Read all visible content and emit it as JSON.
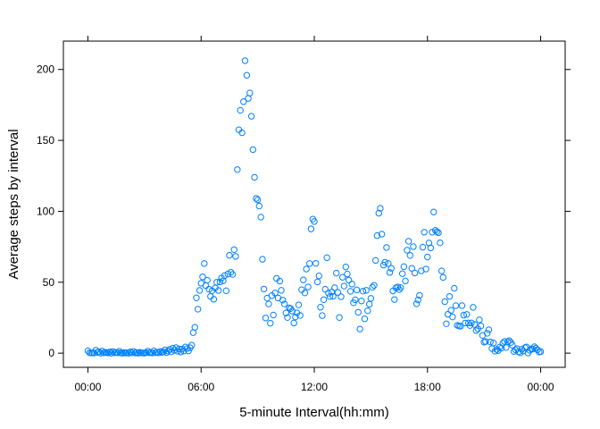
{
  "chart_data": {
    "type": "scatter",
    "title": "",
    "xlabel": "5-minute Interval(hh:mm)",
    "ylabel": "Average steps by interval",
    "x_unit": "hours",
    "xlim": [
      -1.3,
      25.3
    ],
    "ylim": [
      -10,
      220
    ],
    "x_ticks": [
      {
        "value": 0,
        "label": "00:00"
      },
      {
        "value": 6,
        "label": "06:00"
      },
      {
        "value": 12,
        "label": "12:00"
      },
      {
        "value": 18,
        "label": "18:00"
      },
      {
        "value": 24,
        "label": "00:00"
      }
    ],
    "y_ticks": [
      0,
      50,
      100,
      150,
      200
    ],
    "grid": false,
    "ticks_mirrored": true,
    "point_color": "#0080ff",
    "points": [
      [
        0.0,
        1.7
      ],
      [
        0.08,
        0.3
      ],
      [
        0.17,
        0.1
      ],
      [
        0.25,
        0.2
      ],
      [
        0.33,
        0.1
      ],
      [
        0.42,
        2.1
      ],
      [
        0.5,
        0.5
      ],
      [
        0.58,
        0.9
      ],
      [
        0.67,
        0.0
      ],
      [
        0.75,
        1.5
      ],
      [
        0.83,
        0.2
      ],
      [
        0.92,
        0.6
      ],
      [
        1.0,
        0.4
      ],
      [
        1.08,
        0.1
      ],
      [
        1.17,
        0.9
      ],
      [
        1.25,
        0.0
      ],
      [
        1.33,
        1.1
      ],
      [
        1.42,
        0.3
      ],
      [
        1.5,
        0.5
      ],
      [
        1.58,
        0.2
      ],
      [
        1.67,
        1.3
      ],
      [
        1.75,
        0.1
      ],
      [
        1.83,
        0.0
      ],
      [
        1.92,
        0.4
      ],
      [
        2.0,
        0.1
      ],
      [
        2.08,
        0.3
      ],
      [
        2.17,
        0.0
      ],
      [
        2.25,
        0.9
      ],
      [
        2.33,
        0.2
      ],
      [
        2.42,
        1.2
      ],
      [
        2.5,
        0.1
      ],
      [
        2.58,
        0.4
      ],
      [
        2.67,
        0.0
      ],
      [
        2.75,
        0.6
      ],
      [
        2.83,
        0.2
      ],
      [
        2.92,
        0.1
      ],
      [
        3.0,
        0.0
      ],
      [
        3.08,
        0.4
      ],
      [
        3.17,
        1.4
      ],
      [
        3.25,
        0.2
      ],
      [
        3.33,
        0.5
      ],
      [
        3.42,
        0.1
      ],
      [
        3.5,
        1.6
      ],
      [
        3.58,
        0.3
      ],
      [
        3.67,
        0.6
      ],
      [
        3.75,
        0.2
      ],
      [
        3.83,
        1.2
      ],
      [
        3.92,
        0.5
      ],
      [
        4.0,
        0.9
      ],
      [
        4.08,
        2.3
      ],
      [
        4.17,
        0.4
      ],
      [
        4.25,
        1.5
      ],
      [
        4.33,
        2.6
      ],
      [
        4.42,
        0.9
      ],
      [
        4.5,
        3.5
      ],
      [
        4.58,
        2.0
      ],
      [
        4.67,
        3.9
      ],
      [
        4.75,
        1.4
      ],
      [
        4.83,
        3.0
      ],
      [
        4.92,
        0.8
      ],
      [
        5.0,
        2.9
      ],
      [
        5.08,
        1.5
      ],
      [
        5.17,
        4.4
      ],
      [
        5.25,
        3.2
      ],
      [
        5.33,
        1.6
      ],
      [
        5.42,
        3.8
      ],
      [
        5.5,
        5.6
      ],
      [
        5.58,
        14.5
      ],
      [
        5.67,
        18.2
      ],
      [
        5.75,
        39.0
      ],
      [
        5.83,
        31.0
      ],
      [
        5.92,
        44.2
      ],
      [
        6.0,
        49.3
      ],
      [
        6.08,
        53.8
      ],
      [
        6.17,
        63.2
      ],
      [
        6.25,
        47.6
      ],
      [
        6.33,
        51.4
      ],
      [
        6.42,
        45.1
      ],
      [
        6.5,
        40.0
      ],
      [
        6.58,
        44.0
      ],
      [
        6.67,
        38.0
      ],
      [
        6.75,
        46.0
      ],
      [
        6.83,
        50.0
      ],
      [
        6.92,
        44.2
      ],
      [
        7.0,
        50.2
      ],
      [
        7.08,
        53.0
      ],
      [
        7.17,
        51.0
      ],
      [
        7.25,
        54.7
      ],
      [
        7.33,
        44.0
      ],
      [
        7.42,
        55.8
      ],
      [
        7.5,
        69.0
      ],
      [
        7.58,
        57.0
      ],
      [
        7.67,
        55.5
      ],
      [
        7.75,
        73.0
      ],
      [
        7.83,
        68.2
      ],
      [
        7.92,
        129.4
      ],
      [
        8.0,
        157.5
      ],
      [
        8.08,
        171.2
      ],
      [
        8.17,
        155.4
      ],
      [
        8.25,
        177.3
      ],
      [
        8.33,
        206.2
      ],
      [
        8.42,
        195.9
      ],
      [
        8.5,
        179.6
      ],
      [
        8.58,
        183.4
      ],
      [
        8.67,
        167.0
      ],
      [
        8.75,
        143.5
      ],
      [
        8.83,
        124.0
      ],
      [
        8.92,
        109.1
      ],
      [
        9.0,
        108.1
      ],
      [
        9.08,
        103.7
      ],
      [
        9.17,
        95.9
      ],
      [
        9.25,
        66.2
      ],
      [
        9.33,
        45.2
      ],
      [
        9.42,
        24.8
      ],
      [
        9.5,
        38.8
      ],
      [
        9.58,
        34.7
      ],
      [
        9.67,
        21.1
      ],
      [
        9.75,
        40.6
      ],
      [
        9.83,
        26.9
      ],
      [
        9.92,
        42.4
      ],
      [
        10.0,
        52.7
      ],
      [
        10.08,
        38.9
      ],
      [
        10.17,
        50.8
      ],
      [
        10.25,
        44.3
      ],
      [
        10.33,
        37.4
      ],
      [
        10.42,
        34.7
      ],
      [
        10.5,
        28.3
      ],
      [
        10.58,
        25.1
      ],
      [
        10.67,
        31.9
      ],
      [
        10.75,
        31.4
      ],
      [
        10.83,
        29.7
      ],
      [
        10.92,
        21.3
      ],
      [
        11.0,
        25.5
      ],
      [
        11.08,
        28.4
      ],
      [
        11.17,
        34.0
      ],
      [
        11.25,
        26.6
      ],
      [
        11.33,
        44.7
      ],
      [
        11.42,
        51.6
      ],
      [
        11.5,
        42.5
      ],
      [
        11.58,
        59.3
      ],
      [
        11.67,
        46.7
      ],
      [
        11.75,
        63.2
      ],
      [
        11.83,
        87.6
      ],
      [
        11.92,
        94.5
      ],
      [
        12.0,
        92.8
      ],
      [
        12.08,
        63.3
      ],
      [
        12.17,
        50.2
      ],
      [
        12.25,
        54.5
      ],
      [
        12.33,
        32.4
      ],
      [
        12.42,
        26.5
      ],
      [
        12.5,
        37.7
      ],
      [
        12.58,
        45.1
      ],
      [
        12.67,
        67.3
      ],
      [
        12.75,
        42.3
      ],
      [
        12.83,
        39.9
      ],
      [
        12.92,
        43.2
      ],
      [
        13.0,
        40.1
      ],
      [
        13.08,
        46.1
      ],
      [
        13.17,
        56.4
      ],
      [
        13.25,
        42.8
      ],
      [
        13.33,
        25.1
      ],
      [
        13.42,
        39.8
      ],
      [
        13.5,
        53.5
      ],
      [
        13.58,
        47.3
      ],
      [
        13.67,
        60.8
      ],
      [
        13.75,
        55.8
      ],
      [
        13.83,
        51.5
      ],
      [
        13.92,
        43.6
      ],
      [
        14.0,
        48.7
      ],
      [
        14.08,
        35.5
      ],
      [
        14.17,
        37.6
      ],
      [
        14.25,
        44.6
      ],
      [
        14.33,
        28.8
      ],
      [
        14.42,
        17.0
      ],
      [
        14.5,
        36.8
      ],
      [
        14.58,
        43.7
      ],
      [
        14.67,
        24.2
      ],
      [
        14.75,
        44.3
      ],
      [
        14.83,
        29.9
      ],
      [
        14.92,
        34.5
      ],
      [
        15.0,
        38.6
      ],
      [
        15.08,
        46.5
      ],
      [
        15.17,
        47.8
      ],
      [
        15.25,
        65.4
      ],
      [
        15.33,
        82.9
      ],
      [
        15.42,
        98.7
      ],
      [
        15.5,
        102.1
      ],
      [
        15.58,
        83.9
      ],
      [
        15.67,
        62.1
      ],
      [
        15.75,
        64.1
      ],
      [
        15.83,
        74.5
      ],
      [
        15.92,
        63.2
      ],
      [
        16.0,
        56.9
      ],
      [
        16.08,
        59.8
      ],
      [
        16.17,
        43.9
      ],
      [
        16.25,
        37.8
      ],
      [
        16.33,
        46.0
      ],
      [
        16.42,
        46.7
      ],
      [
        16.5,
        44.8
      ],
      [
        16.58,
        46.2
      ],
      [
        16.67,
        56.0
      ],
      [
        16.75,
        61.0
      ],
      [
        16.83,
        50.9
      ],
      [
        16.92,
        72.6
      ],
      [
        17.0,
        78.9
      ],
      [
        17.08,
        68.9
      ],
      [
        17.17,
        59.8
      ],
      [
        17.25,
        75.1
      ],
      [
        17.33,
        56.5
      ],
      [
        17.42,
        34.8
      ],
      [
        17.5,
        37.5
      ],
      [
        17.58,
        40.7
      ],
      [
        17.67,
        58.0
      ],
      [
        17.75,
        74.7
      ],
      [
        17.83,
        85.3
      ],
      [
        17.92,
        59.3
      ],
      [
        18.0,
        67.8
      ],
      [
        18.08,
        77.7
      ],
      [
        18.17,
        74.2
      ],
      [
        18.25,
        85.3
      ],
      [
        18.33,
        99.5
      ],
      [
        18.42,
        86.6
      ],
      [
        18.5,
        85.6
      ],
      [
        18.58,
        84.9
      ],
      [
        18.67,
        77.8
      ],
      [
        18.75,
        58.0
      ],
      [
        18.83,
        53.4
      ],
      [
        18.92,
        36.3
      ],
      [
        19.0,
        20.7
      ],
      [
        19.08,
        27.4
      ],
      [
        19.17,
        40.0
      ],
      [
        19.25,
        30.2
      ],
      [
        19.33,
        25.5
      ],
      [
        19.42,
        45.7
      ],
      [
        19.5,
        33.5
      ],
      [
        19.58,
        19.6
      ],
      [
        19.67,
        19.2
      ],
      [
        19.75,
        19.0
      ],
      [
        19.83,
        33.5
      ],
      [
        19.92,
        26.8
      ],
      [
        20.0,
        21.2
      ],
      [
        20.08,
        27.3
      ],
      [
        20.17,
        21.3
      ],
      [
        20.25,
        19.5
      ],
      [
        20.33,
        21.3
      ],
      [
        20.42,
        32.3
      ],
      [
        20.5,
        20.2
      ],
      [
        20.58,
        15.9
      ],
      [
        20.67,
        17.2
      ],
      [
        20.75,
        23.5
      ],
      [
        20.83,
        19.2
      ],
      [
        20.92,
        12.5
      ],
      [
        21.0,
        7.8
      ],
      [
        21.08,
        8.2
      ],
      [
        21.17,
        14.0
      ],
      [
        21.25,
        16.5
      ],
      [
        21.33,
        7.9
      ],
      [
        21.42,
        3.2
      ],
      [
        21.5,
        7.2
      ],
      [
        21.58,
        1.4
      ],
      [
        21.67,
        2.6
      ],
      [
        21.75,
        1.8
      ],
      [
        21.83,
        4.3
      ],
      [
        21.92,
        3.5
      ],
      [
        22.0,
        7.0
      ],
      [
        22.08,
        8.2
      ],
      [
        22.17,
        4.0
      ],
      [
        22.25,
        8.0
      ],
      [
        22.33,
        8.8
      ],
      [
        22.42,
        7.5
      ],
      [
        22.5,
        5.7
      ],
      [
        22.58,
        1.2
      ],
      [
        22.67,
        2.3
      ],
      [
        22.75,
        3.2
      ],
      [
        22.83,
        0.9
      ],
      [
        22.92,
        0.2
      ],
      [
        23.0,
        2.7
      ],
      [
        23.08,
        1.5
      ],
      [
        23.17,
        3.9
      ],
      [
        23.25,
        4.4
      ],
      [
        23.33,
        0.1
      ],
      [
        23.42,
        2.0
      ],
      [
        23.5,
        3.1
      ],
      [
        23.58,
        2.9
      ],
      [
        23.67,
        4.5
      ],
      [
        23.75,
        3.5
      ],
      [
        23.83,
        2.4
      ],
      [
        23.92,
        0.8
      ],
      [
        24.0,
        1.1
      ]
    ]
  }
}
